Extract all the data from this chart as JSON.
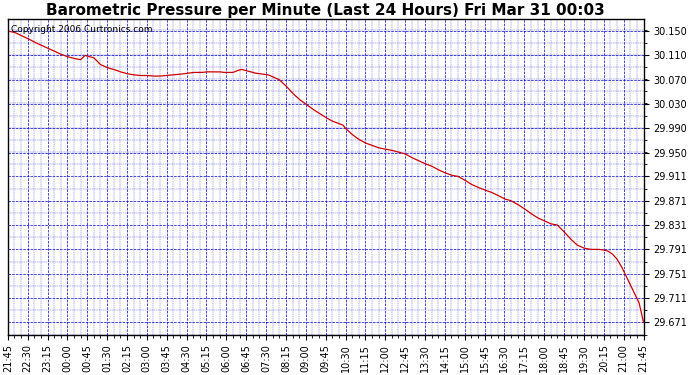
{
  "title": "Barometric Pressure per Minute (Last 24 Hours) Fri Mar 31 00:03",
  "copyright": "Copyright 2006 Curtronics.com",
  "background_color": "#ffffff",
  "plot_bg_color": "#ffffff",
  "line_color": "#cc0000",
  "grid_color": "#0000cc",
  "ytick_labels": [
    30.15,
    30.11,
    30.07,
    30.03,
    29.99,
    29.95,
    29.911,
    29.871,
    29.831,
    29.791,
    29.751,
    29.711,
    29.671
  ],
  "ymin": 29.651,
  "ymax": 30.17,
  "title_fontsize": 11,
  "tick_fontsize": 7,
  "copyright_fontsize": 6.5,
  "control_points": [
    [
      0,
      30.15
    ],
    [
      15,
      30.148
    ],
    [
      30,
      30.143
    ],
    [
      45,
      30.138
    ],
    [
      60,
      30.132
    ],
    [
      75,
      30.127
    ],
    [
      90,
      30.122
    ],
    [
      105,
      30.117
    ],
    [
      120,
      30.112
    ],
    [
      135,
      30.108
    ],
    [
      150,
      30.105
    ],
    [
      165,
      30.103
    ],
    [
      175,
      30.11
    ],
    [
      185,
      30.108
    ],
    [
      195,
      30.106
    ],
    [
      210,
      30.095
    ],
    [
      225,
      30.09
    ],
    [
      240,
      30.087
    ],
    [
      255,
      30.083
    ],
    [
      270,
      30.08
    ],
    [
      285,
      30.078
    ],
    [
      300,
      30.077
    ],
    [
      315,
      30.077
    ],
    [
      330,
      30.076
    ],
    [
      345,
      30.076
    ],
    [
      360,
      30.077
    ],
    [
      375,
      30.078
    ],
    [
      390,
      30.079
    ],
    [
      400,
      30.08
    ],
    [
      410,
      30.081
    ],
    [
      420,
      30.082
    ],
    [
      430,
      30.082
    ],
    [
      440,
      30.082
    ],
    [
      450,
      30.083
    ],
    [
      460,
      30.083
    ],
    [
      470,
      30.083
    ],
    [
      480,
      30.083
    ],
    [
      490,
      30.082
    ],
    [
      500,
      30.082
    ],
    [
      510,
      30.082
    ],
    [
      520,
      30.085
    ],
    [
      530,
      30.087
    ],
    [
      540,
      30.085
    ],
    [
      550,
      30.083
    ],
    [
      560,
      30.081
    ],
    [
      570,
      30.08
    ],
    [
      580,
      30.079
    ],
    [
      590,
      30.078
    ],
    [
      600,
      30.075
    ],
    [
      615,
      30.07
    ],
    [
      630,
      30.06
    ],
    [
      645,
      30.048
    ],
    [
      660,
      30.038
    ],
    [
      675,
      30.03
    ],
    [
      690,
      30.022
    ],
    [
      705,
      30.015
    ],
    [
      720,
      30.008
    ],
    [
      735,
      30.002
    ],
    [
      750,
      29.998
    ],
    [
      760,
      29.995
    ],
    [
      765,
      29.99
    ],
    [
      780,
      29.98
    ],
    [
      795,
      29.972
    ],
    [
      810,
      29.966
    ],
    [
      825,
      29.962
    ],
    [
      840,
      29.958
    ],
    [
      855,
      29.956
    ],
    [
      870,
      29.954
    ],
    [
      885,
      29.951
    ],
    [
      900,
      29.948
    ],
    [
      915,
      29.942
    ],
    [
      930,
      29.937
    ],
    [
      945,
      29.932
    ],
    [
      960,
      29.928
    ],
    [
      975,
      29.922
    ],
    [
      990,
      29.917
    ],
    [
      1005,
      29.913
    ],
    [
      1020,
      29.911
    ],
    [
      1035,
      29.905
    ],
    [
      1050,
      29.898
    ],
    [
      1065,
      29.893
    ],
    [
      1080,
      29.889
    ],
    [
      1095,
      29.885
    ],
    [
      1110,
      29.88
    ],
    [
      1125,
      29.874
    ],
    [
      1140,
      29.871
    ],
    [
      1155,
      29.865
    ],
    [
      1170,
      29.858
    ],
    [
      1185,
      29.85
    ],
    [
      1200,
      29.843
    ],
    [
      1215,
      29.838
    ],
    [
      1230,
      29.833
    ],
    [
      1245,
      29.831
    ],
    [
      1260,
      29.82
    ],
    [
      1275,
      29.808
    ],
    [
      1290,
      29.798
    ],
    [
      1305,
      29.793
    ],
    [
      1320,
      29.791
    ],
    [
      1330,
      29.791
    ],
    [
      1340,
      29.791
    ],
    [
      1350,
      29.79
    ],
    [
      1360,
      29.788
    ],
    [
      1370,
      29.783
    ],
    [
      1380,
      29.775
    ],
    [
      1390,
      29.763
    ],
    [
      1400,
      29.748
    ],
    [
      1410,
      29.733
    ],
    [
      1420,
      29.718
    ],
    [
      1430,
      29.703
    ],
    [
      1440,
      29.671
    ]
  ]
}
